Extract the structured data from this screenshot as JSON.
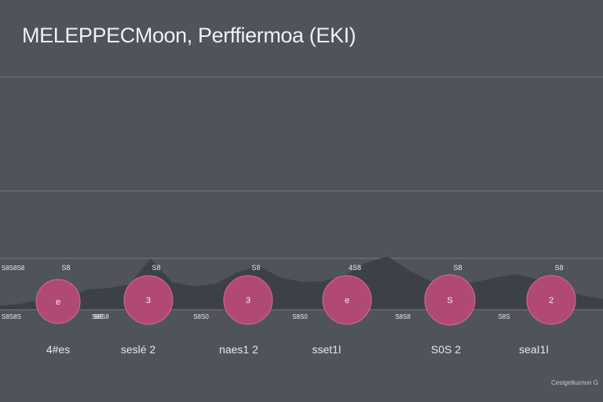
{
  "title": "MELEPPECMoon, Perffiermoa (EKI)",
  "footer_note": "Cestgelkurnon G",
  "colors": {
    "background": "#4f535a",
    "gridline": "#8a8e95",
    "area_fill": "#3b3f47",
    "bubble_fill": "#b04a75",
    "bubble_stroke": "#d66b97",
    "text": "#e6e8ec"
  },
  "chart_data": {
    "type": "area",
    "title": "MELEPPECMoon, Perffiermoa (EKI)",
    "xlabel": "",
    "ylabel": "",
    "grid": true,
    "legend": "none",
    "area_profile": [
      0.05,
      0.08,
      0.15,
      0.12,
      0.28,
      0.3,
      0.35,
      0.72,
      0.38,
      0.33,
      0.36,
      0.52,
      0.62,
      0.45,
      0.39,
      0.4,
      0.48,
      0.66,
      0.75,
      0.55,
      0.4,
      0.36,
      0.38,
      0.45,
      0.5,
      0.42,
      0.3,
      0.2,
      0.15
    ],
    "categories": [
      "4#es",
      "seslé 2",
      "naes1 2",
      "sset1ǀ",
      "S0S 2",
      "seaI1ǀ"
    ],
    "bubble_values": [
      "e",
      "3",
      "3",
      "e",
      "S",
      "2"
    ],
    "top_labels": [
      "S8",
      "S8",
      "S8",
      "4S8",
      "S8",
      "S8"
    ],
    "bottom_labels": [
      "S85",
      "S8S8",
      "S8S0",
      "S8S0",
      "S8S8",
      "S8S"
    ],
    "left_top_label": "S8S8S8",
    "left_bottom_label": "S8S8S"
  }
}
